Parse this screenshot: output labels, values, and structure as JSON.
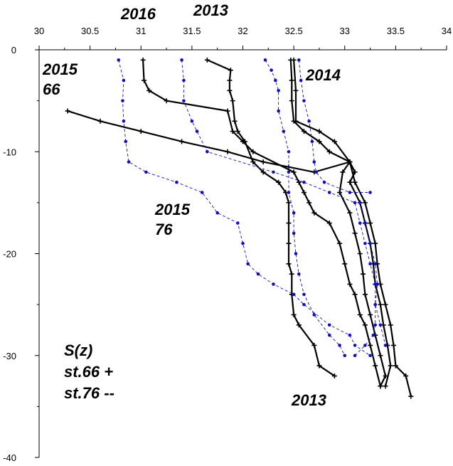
{
  "chart_data": {
    "type": "line",
    "title": "",
    "xlabel": "",
    "ylabel": "",
    "xlim": [
      30,
      34
    ],
    "ylim": [
      -40,
      0
    ],
    "x_ticks": [
      "30",
      "30.5",
      "31",
      "31.5",
      "32",
      "32.5",
      "33",
      "33.5",
      "34"
    ],
    "y_ticks": [
      "0",
      "-10",
      "-20",
      "-30",
      "-40"
    ],
    "x_axis_position": "top",
    "grid": false,
    "colors": {
      "station_66": "#000000",
      "station_76": "#1010c0"
    },
    "annotations": {
      "top_2016": "2016",
      "top_2013": "2013",
      "l2015_66_a": "2015",
      "l2015_66_b": "66",
      "l2014": "2014",
      "l2015_76_a": "2015",
      "l2015_76_b": "76",
      "legend_1": "S(z)",
      "legend_2": "st.66 +",
      "legend_3": "st.76 --",
      "bottom_2013": "2013"
    },
    "series": [
      {
        "station": "66",
        "style": "solid-plus",
        "points": [
          [
            31.02,
            -1
          ],
          [
            31.03,
            -3
          ],
          [
            31.08,
            -4
          ],
          [
            31.25,
            -5
          ],
          [
            31.85,
            -6
          ],
          [
            31.9,
            -8
          ],
          [
            32.0,
            -9
          ],
          [
            32.1,
            -10
          ],
          [
            32.5,
            -12
          ],
          [
            32.55,
            -13
          ],
          [
            32.6,
            -14
          ],
          [
            32.65,
            -15
          ],
          [
            32.7,
            -16
          ],
          [
            32.85,
            -17
          ],
          [
            32.95,
            -19
          ],
          [
            33.0,
            -21
          ],
          [
            33.05,
            -23
          ],
          [
            33.1,
            -24
          ],
          [
            33.15,
            -26
          ],
          [
            33.2,
            -27
          ],
          [
            33.25,
            -29
          ],
          [
            33.3,
            -31
          ],
          [
            33.35,
            -33
          ]
        ]
      },
      {
        "station": "66",
        "style": "solid-plus",
        "points": [
          [
            31.65,
            -1
          ],
          [
            31.88,
            -2
          ],
          [
            31.87,
            -3
          ],
          [
            31.87,
            -4
          ],
          [
            31.9,
            -5
          ],
          [
            31.92,
            -7
          ],
          [
            31.95,
            -8
          ],
          [
            32.02,
            -9
          ],
          [
            32.1,
            -11
          ],
          [
            32.2,
            -12
          ],
          [
            32.35,
            -13
          ],
          [
            32.42,
            -14
          ],
          [
            32.45,
            -15
          ],
          [
            32.45,
            -17
          ],
          [
            32.45,
            -19
          ],
          [
            32.45,
            -21
          ],
          [
            32.48,
            -22
          ],
          [
            32.48,
            -24
          ],
          [
            32.5,
            -26
          ],
          [
            32.55,
            -27
          ],
          [
            32.7,
            -29
          ],
          [
            32.75,
            -31
          ],
          [
            32.9,
            -32
          ]
        ]
      },
      {
        "station": "66",
        "style": "solid-plus",
        "points": [
          [
            32.47,
            -1
          ],
          [
            32.48,
            -3
          ],
          [
            32.48,
            -5
          ],
          [
            32.5,
            -7
          ],
          [
            32.6,
            -8
          ],
          [
            32.75,
            -9
          ],
          [
            32.85,
            -10
          ],
          [
            33.05,
            -11
          ],
          [
            32.98,
            -12
          ],
          [
            32.95,
            -14
          ],
          [
            33.05,
            -16
          ],
          [
            33.1,
            -18
          ],
          [
            33.15,
            -20
          ],
          [
            33.18,
            -22
          ],
          [
            33.2,
            -24
          ],
          [
            33.25,
            -26
          ],
          [
            33.3,
            -28
          ],
          [
            33.35,
            -30
          ],
          [
            33.4,
            -32
          ],
          [
            33.35,
            -33
          ]
        ]
      },
      {
        "station": "66",
        "style": "solid-plus",
        "points": [
          [
            30.28,
            -6
          ],
          [
            30.6,
            -7
          ],
          [
            31.0,
            -8
          ],
          [
            31.4,
            -9
          ],
          [
            31.85,
            -10
          ],
          [
            32.2,
            -11
          ],
          [
            32.45,
            -11.5
          ],
          [
            32.7,
            -12
          ],
          [
            33.05,
            -11
          ],
          [
            33.1,
            -13
          ],
          [
            33.2,
            -15
          ],
          [
            33.25,
            -17
          ],
          [
            33.3,
            -19
          ],
          [
            33.32,
            -21
          ],
          [
            33.35,
            -23
          ],
          [
            33.4,
            -25
          ],
          [
            33.45,
            -27
          ],
          [
            33.48,
            -29
          ],
          [
            33.5,
            -31
          ],
          [
            33.6,
            -32
          ],
          [
            33.65,
            -34
          ]
        ]
      },
      {
        "station": "66",
        "style": "solid-plus",
        "points": [
          [
            32.5,
            -1
          ],
          [
            32.52,
            -4
          ],
          [
            32.52,
            -7
          ],
          [
            32.75,
            -8
          ],
          [
            32.9,
            -9
          ],
          [
            33.05,
            -11
          ],
          [
            33.1,
            -12
          ],
          [
            33.05,
            -13
          ],
          [
            33.15,
            -15
          ],
          [
            33.2,
            -17
          ],
          [
            33.25,
            -19
          ],
          [
            33.28,
            -21
          ],
          [
            33.3,
            -23
          ],
          [
            33.35,
            -25
          ],
          [
            33.38,
            -27
          ],
          [
            33.42,
            -29
          ],
          [
            33.45,
            -31
          ],
          [
            33.4,
            -33
          ]
        ]
      },
      {
        "station": "76",
        "style": "dashed-dot",
        "points": [
          [
            30.78,
            -1
          ],
          [
            30.83,
            -3
          ],
          [
            30.82,
            -5
          ],
          [
            30.83,
            -7
          ],
          [
            30.85,
            -9
          ],
          [
            30.88,
            -11
          ],
          [
            31.05,
            -12
          ],
          [
            31.35,
            -13
          ],
          [
            31.6,
            -14
          ],
          [
            31.75,
            -16
          ],
          [
            31.95,
            -17
          ],
          [
            32.0,
            -19
          ],
          [
            32.05,
            -21
          ],
          [
            32.15,
            -22
          ],
          [
            32.3,
            -23
          ],
          [
            32.5,
            -24
          ],
          [
            32.6,
            -25
          ],
          [
            32.85,
            -27
          ],
          [
            33.05,
            -28
          ],
          [
            33.1,
            -29
          ],
          [
            33.25,
            -30
          ]
        ]
      },
      {
        "station": "76",
        "style": "dashed-dot",
        "points": [
          [
            31.4,
            -1
          ],
          [
            31.42,
            -3
          ],
          [
            31.42,
            -5
          ],
          [
            31.5,
            -7
          ],
          [
            31.55,
            -8
          ],
          [
            31.65,
            -10
          ],
          [
            32.3,
            -12
          ],
          [
            32.6,
            -13
          ],
          [
            32.85,
            -14
          ],
          [
            33.1,
            -15
          ],
          [
            33.15,
            -17
          ],
          [
            33.2,
            -19
          ],
          [
            33.25,
            -21
          ],
          [
            33.3,
            -23
          ],
          [
            33.3,
            -25
          ],
          [
            33.35,
            -27
          ],
          [
            33.4,
            -29
          ]
        ]
      },
      {
        "station": "76",
        "style": "dashed-dot",
        "points": [
          [
            32.22,
            -1
          ],
          [
            32.28,
            -2
          ],
          [
            32.32,
            -3
          ],
          [
            32.35,
            -4
          ],
          [
            32.35,
            -6
          ],
          [
            32.4,
            -8
          ],
          [
            32.45,
            -10
          ],
          [
            32.45,
            -12
          ],
          [
            32.45,
            -14
          ],
          [
            32.5,
            -16
          ],
          [
            32.5,
            -18
          ],
          [
            32.52,
            -20
          ],
          [
            32.55,
            -22
          ],
          [
            32.6,
            -24
          ],
          [
            32.7,
            -26
          ],
          [
            32.85,
            -28
          ],
          [
            32.95,
            -29
          ],
          [
            33.0,
            -30
          ]
        ]
      },
      {
        "station": "76",
        "style": "dashed-dot",
        "points": [
          [
            32.55,
            -1
          ],
          [
            32.57,
            -3
          ],
          [
            32.6,
            -5
          ],
          [
            32.65,
            -7
          ],
          [
            32.68,
            -9
          ],
          [
            32.7,
            -11
          ],
          [
            32.72,
            -12
          ],
          [
            32.8,
            -13
          ],
          [
            33.05,
            -14
          ],
          [
            33.25,
            -14
          ]
        ]
      },
      {
        "station": "76",
        "style": "dashed-dot",
        "points": [
          [
            33.15,
            -15
          ],
          [
            33.2,
            -17
          ],
          [
            33.25,
            -19
          ],
          [
            33.3,
            -21
          ],
          [
            33.32,
            -23
          ],
          [
            33.3,
            -25
          ],
          [
            33.3,
            -27
          ],
          [
            33.28,
            -28
          ],
          [
            33.2,
            -29
          ],
          [
            33.1,
            -30
          ]
        ]
      }
    ]
  }
}
